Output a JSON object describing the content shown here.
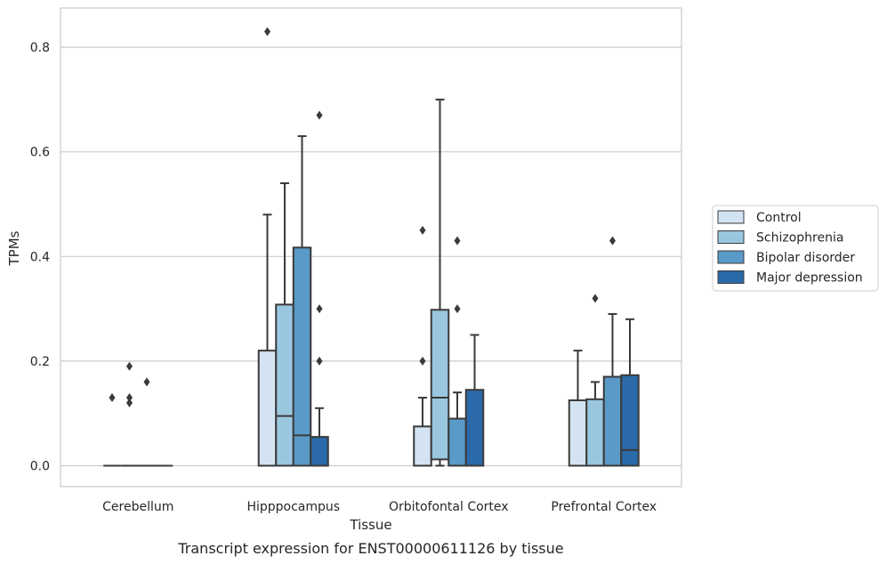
{
  "chart_data": {
    "type": "box",
    "title": "",
    "caption": "Transcript expression for ENST00000611126 by tissue",
    "xlabel": "Tissue",
    "ylabel": "TPMs",
    "ylim": [
      -0.04,
      0.875
    ],
    "yticks": [
      "0.0",
      "0.2",
      "0.4",
      "0.6",
      "0.8"
    ],
    "ytick_values": [
      0.0,
      0.2,
      0.4,
      0.6,
      0.8
    ],
    "grid": "horizontal",
    "legend_position": "right",
    "categories": [
      "Cerebellum",
      "Hipppocampus",
      "Orbitofontal Cortex",
      "Prefrontal Cortex"
    ],
    "series": [
      {
        "name": "Control",
        "color": "#d3e3f2",
        "boxes": [
          {
            "q1": 0.0,
            "median": 0.0,
            "q3": 0.0,
            "whislo": 0.0,
            "whishi": 0.0,
            "fliers": [
              0.13
            ]
          },
          {
            "q1": 0.0,
            "median": 0.0,
            "q3": 0.22,
            "whislo": 0.0,
            "whishi": 0.48,
            "fliers": [
              0.83
            ]
          },
          {
            "q1": 0.0,
            "median": 0.0,
            "q3": 0.075,
            "whislo": 0.0,
            "whishi": 0.13,
            "fliers": [
              0.2,
              0.45
            ]
          },
          {
            "q1": 0.0,
            "median": 0.0,
            "q3": 0.125,
            "whislo": 0.0,
            "whishi": 0.22,
            "fliers": []
          }
        ]
      },
      {
        "name": "Schizophrenia",
        "color": "#9ac7e0",
        "boxes": [
          {
            "q1": 0.0,
            "median": 0.0,
            "q3": 0.0,
            "whislo": 0.0,
            "whishi": 0.0,
            "fliers": [
              0.19,
              0.13,
              0.12
            ]
          },
          {
            "q1": 0.0,
            "median": 0.095,
            "q3": 0.308,
            "whislo": 0.0,
            "whishi": 0.54,
            "fliers": []
          },
          {
            "q1": 0.012,
            "median": 0.13,
            "q3": 0.298,
            "whislo": 0.0,
            "whishi": 0.7,
            "fliers": []
          },
          {
            "q1": 0.0,
            "median": 0.0,
            "q3": 0.127,
            "whislo": 0.0,
            "whishi": 0.16,
            "fliers": [
              0.32
            ]
          }
        ]
      },
      {
        "name": "Bipolar disorder",
        "color": "#5a9ac8",
        "boxes": [
          {
            "q1": 0.0,
            "median": 0.0,
            "q3": 0.0,
            "whislo": 0.0,
            "whishi": 0.0,
            "fliers": [
              0.16
            ]
          },
          {
            "q1": 0.0,
            "median": 0.058,
            "q3": 0.417,
            "whislo": 0.0,
            "whishi": 0.63,
            "fliers": []
          },
          {
            "q1": 0.0,
            "median": 0.0,
            "q3": 0.09,
            "whislo": 0.0,
            "whishi": 0.14,
            "fliers": [
              0.3,
              0.43
            ]
          },
          {
            "q1": 0.0,
            "median": 0.0,
            "q3": 0.17,
            "whislo": 0.0,
            "whishi": 0.29,
            "fliers": [
              0.43
            ]
          }
        ]
      },
      {
        "name": "Major depression",
        "color": "#2a6aa9",
        "boxes": [
          {
            "q1": 0.0,
            "median": 0.0,
            "q3": 0.0,
            "whislo": 0.0,
            "whishi": 0.0,
            "fliers": []
          },
          {
            "q1": 0.0,
            "median": 0.0,
            "q3": 0.055,
            "whislo": 0.0,
            "whishi": 0.11,
            "fliers": [
              0.2,
              0.3,
              0.67
            ]
          },
          {
            "q1": 0.0,
            "median": 0.0,
            "q3": 0.145,
            "whislo": 0.0,
            "whishi": 0.25,
            "fliers": []
          },
          {
            "q1": 0.0,
            "median": 0.03,
            "q3": 0.173,
            "whislo": 0.0,
            "whishi": 0.28,
            "fliers": []
          }
        ]
      }
    ]
  }
}
